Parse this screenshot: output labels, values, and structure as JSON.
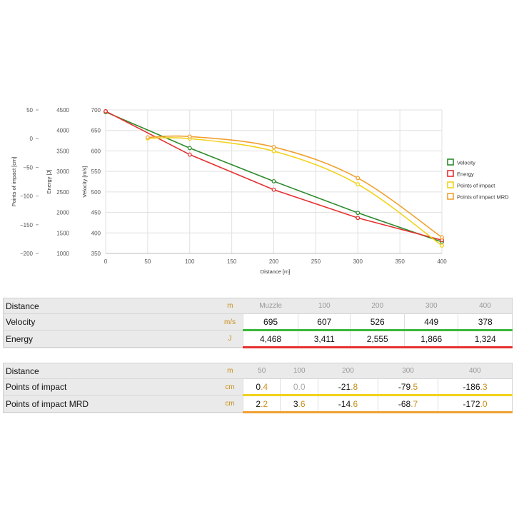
{
  "chart_data": {
    "type": "line",
    "xlabel": "Distance [m]",
    "xlim": [
      0,
      400
    ],
    "x_ticks": [
      "0",
      "50",
      "100",
      "150",
      "200",
      "250",
      "300",
      "350",
      "400"
    ],
    "grid": true,
    "legend_position": "right",
    "axes": [
      {
        "label": "Points of impact [cm]",
        "range": [
          -200,
          50
        ],
        "ticks": [
          "50",
          "0",
          "−50",
          "−100",
          "−150",
          "−200"
        ]
      },
      {
        "label": "Energy [J]",
        "range": [
          1000,
          4500
        ],
        "ticks": [
          "4500",
          "4000",
          "3500",
          "3000",
          "2500",
          "2000",
          "1500",
          "1000"
        ]
      },
      {
        "label": "Velocity [m/s]",
        "range": [
          350,
          700
        ],
        "ticks": [
          "700",
          "650",
          "600",
          "550",
          "500",
          "450",
          "400",
          "350"
        ]
      }
    ],
    "series": [
      {
        "name": "Velocity",
        "axis": "Velocity [m/s]",
        "x": [
          0,
          100,
          200,
          300,
          400
        ],
        "y": [
          695,
          607,
          526,
          449,
          378
        ],
        "color": "#2e8b2e"
      },
      {
        "name": "Energy",
        "axis": "Energy [J]",
        "x": [
          0,
          100,
          200,
          300,
          400
        ],
        "y": [
          4468,
          3411,
          2555,
          1866,
          1324
        ],
        "color": "#e53030"
      },
      {
        "name": "Points of impact",
        "axis": "Points of impact [cm]",
        "x": [
          50,
          100,
          200,
          300,
          400
        ],
        "y": [
          0.4,
          0.0,
          -21.8,
          -79.5,
          -186.3
        ],
        "color": "#f2d21b"
      },
      {
        "name": "Points of impact MRD",
        "axis": "Points of impact [cm]",
        "x": [
          50,
          100,
          200,
          300,
          400
        ],
        "y": [
          2.2,
          3.6,
          -14.6,
          -68.7,
          -172.0
        ],
        "color": "#f0a030"
      }
    ]
  },
  "table1": {
    "distance_label": "Distance",
    "distance_unit": "m",
    "headers": [
      "Muzzle",
      "100",
      "200",
      "300",
      "400"
    ],
    "rows": [
      {
        "label": "Velocity",
        "unit": "m/s",
        "values": [
          "695",
          "607",
          "526",
          "449",
          "378"
        ],
        "color": "#3bb83b"
      },
      {
        "label": "Energy",
        "unit": "J",
        "values": [
          "4,468",
          "3,411",
          "2,555",
          "1,866",
          "1,324"
        ],
        "color": "#e53030"
      }
    ]
  },
  "table2": {
    "distance_label": "Distance",
    "distance_unit": "m",
    "headers": [
      "50",
      "100",
      "200",
      "300",
      "400"
    ],
    "rows": [
      {
        "label": "Points of impact",
        "unit": "cm",
        "values": [
          "0.4",
          "0.0",
          "-21.8",
          "-79.5",
          "-186.3"
        ],
        "color": "#f2d21b"
      },
      {
        "label": "Points of impact MRD",
        "unit": "cm",
        "values": [
          "2.2",
          "3.6",
          "-14.6",
          "-68.7",
          "-172.0"
        ],
        "color": "#f0a030"
      }
    ]
  }
}
